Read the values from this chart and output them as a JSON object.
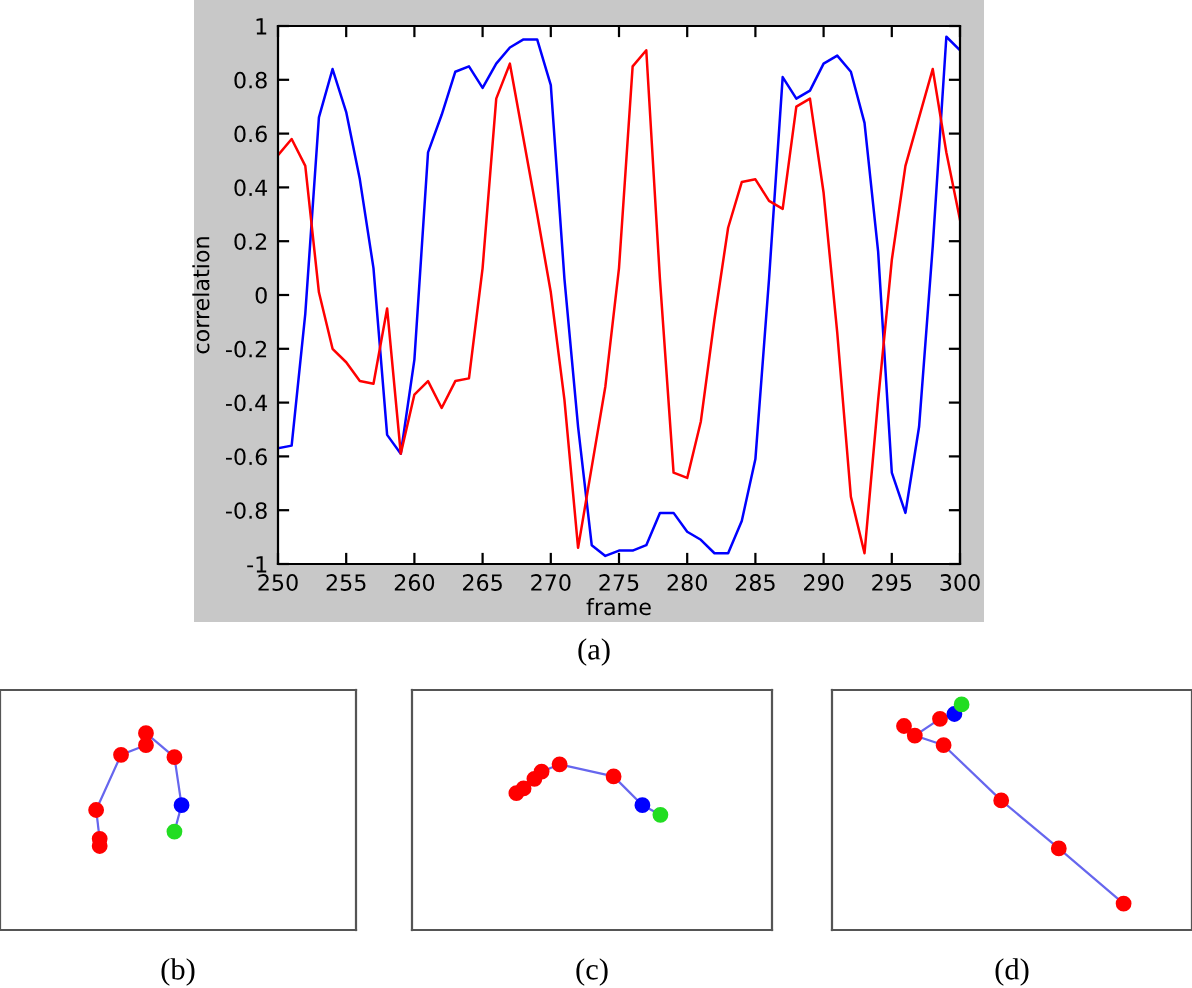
{
  "chart_data": {
    "type": "line",
    "xlabel": "frame",
    "ylabel": "correlation",
    "x": [
      250,
      251,
      252,
      253,
      254,
      255,
      256,
      257,
      258,
      259,
      260,
      261,
      262,
      263,
      264,
      265,
      266,
      267,
      268,
      269,
      270,
      271,
      272,
      273,
      274,
      275,
      276,
      277,
      278,
      279,
      280,
      281,
      282,
      283,
      284,
      285,
      286,
      287,
      288,
      289,
      290,
      291,
      292,
      293,
      294,
      295,
      296,
      297,
      298,
      299,
      300
    ],
    "series": [
      {
        "color": "#0000ff",
        "values": [
          -0.57,
          -0.56,
          -0.07,
          0.66,
          0.84,
          0.68,
          0.43,
          0.1,
          -0.52,
          -0.59,
          -0.24,
          0.53,
          0.67,
          0.83,
          0.85,
          0.77,
          0.86,
          0.92,
          0.95,
          0.95,
          0.78,
          0.06,
          -0.49,
          -0.93,
          -0.97,
          -0.95,
          -0.95,
          -0.93,
          -0.81,
          -0.81,
          -0.88,
          -0.91,
          -0.96,
          -0.96,
          -0.84,
          -0.61,
          0.06,
          0.81,
          0.73,
          0.76,
          0.86,
          0.89,
          0.83,
          0.64,
          0.16,
          -0.66,
          -0.81,
          -0.49,
          0.18,
          0.96,
          0.91
        ]
      },
      {
        "color": "#ff0000",
        "values": [
          0.52,
          0.58,
          0.48,
          0.01,
          -0.2,
          -0.25,
          -0.32,
          -0.33,
          -0.05,
          -0.59,
          -0.37,
          -0.32,
          -0.42,
          -0.32,
          -0.31,
          0.1,
          0.73,
          0.86,
          0.58,
          0.3,
          0.01,
          -0.39,
          -0.94,
          -0.64,
          -0.34,
          0.1,
          0.85,
          0.91,
          0.06,
          -0.66,
          -0.68,
          -0.47,
          -0.09,
          0.25,
          0.42,
          0.43,
          0.35,
          0.32,
          0.7,
          0.73,
          0.38,
          -0.14,
          -0.75,
          -0.96,
          -0.39,
          0.13,
          0.48,
          0.66,
          0.84,
          0.53,
          0.28
        ]
      }
    ],
    "xlim": [
      250,
      300
    ],
    "ylim": [
      -1,
      1
    ],
    "xticks": [
      250,
      255,
      260,
      265,
      270,
      275,
      280,
      285,
      290,
      295,
      300
    ],
    "yticks": [
      -1,
      -0.8,
      -0.6,
      -0.4,
      -0.2,
      0,
      0.2,
      0.4,
      0.6,
      0.8,
      1
    ],
    "grid": false,
    "legend": false,
    "marker": "none",
    "line_style": "solid",
    "annotations": [
      "(a)",
      "(b)",
      "(c)",
      "(d)"
    ]
  }
}
